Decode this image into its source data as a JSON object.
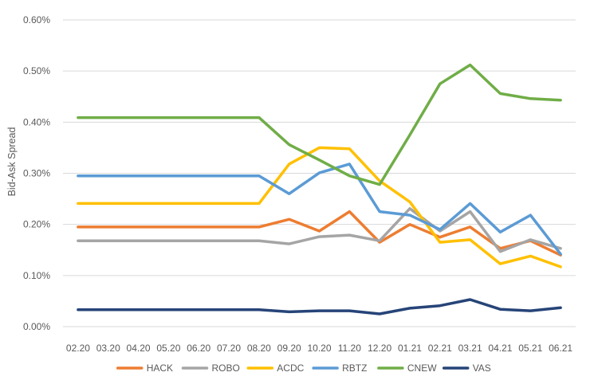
{
  "chart_data": {
    "type": "line",
    "title": "",
    "xlabel": "",
    "ylabel": "Bid-Ask Spread",
    "ylim": [
      0,
      0.6
    ],
    "y_tick_labels": [
      "0.00%",
      "0.10%",
      "0.20%",
      "0.30%",
      "0.40%",
      "0.50%",
      "0.60%"
    ],
    "y_unit": "%",
    "grid": "horizontal",
    "legend_position": "bottom",
    "categories": [
      "02.20",
      "03.20",
      "04.20",
      "05.20",
      "06.20",
      "07.20",
      "08.20",
      "09.20",
      "10.20",
      "11.20",
      "12.20",
      "01.21",
      "02.21",
      "03.21",
      "04.21",
      "05.21",
      "06.21"
    ],
    "series": [
      {
        "name": "HACK",
        "color": "#ED7D31",
        "values": [
          0.195,
          0.195,
          0.195,
          0.195,
          0.195,
          0.195,
          0.195,
          0.21,
          0.187,
          0.225,
          0.165,
          0.2,
          0.175,
          0.195,
          0.153,
          0.168,
          0.14
        ]
      },
      {
        "name": "ROBO",
        "color": "#A5A5A5",
        "values": [
          0.168,
          0.168,
          0.168,
          0.168,
          0.168,
          0.168,
          0.168,
          0.162,
          0.176,
          0.179,
          0.168,
          0.231,
          0.187,
          0.225,
          0.147,
          0.17,
          0.153
        ]
      },
      {
        "name": "ACDC",
        "color": "#FFC000",
        "values": [
          0.241,
          0.241,
          0.241,
          0.241,
          0.241,
          0.241,
          0.241,
          0.318,
          0.35,
          0.348,
          0.285,
          0.244,
          0.165,
          0.17,
          0.123,
          0.138,
          0.117
        ]
      },
      {
        "name": "RBTZ",
        "color": "#5B9BD5",
        "values": [
          0.295,
          0.295,
          0.295,
          0.295,
          0.295,
          0.295,
          0.295,
          0.26,
          0.301,
          0.318,
          0.225,
          0.218,
          0.19,
          0.241,
          0.185,
          0.218,
          0.142
        ]
      },
      {
        "name": "CNEW",
        "color": "#70AD47",
        "values": [
          0.409,
          0.409,
          0.409,
          0.409,
          0.409,
          0.409,
          0.409,
          0.356,
          0.326,
          0.295,
          0.278,
          0.375,
          0.475,
          0.512,
          0.456,
          0.446,
          0.443
        ]
      },
      {
        "name": "VAS",
        "color": "#264478",
        "values": [
          0.033,
          0.033,
          0.033,
          0.033,
          0.033,
          0.033,
          0.033,
          0.029,
          0.031,
          0.031,
          0.025,
          0.036,
          0.041,
          0.053,
          0.034,
          0.031,
          0.037
        ]
      }
    ]
  }
}
